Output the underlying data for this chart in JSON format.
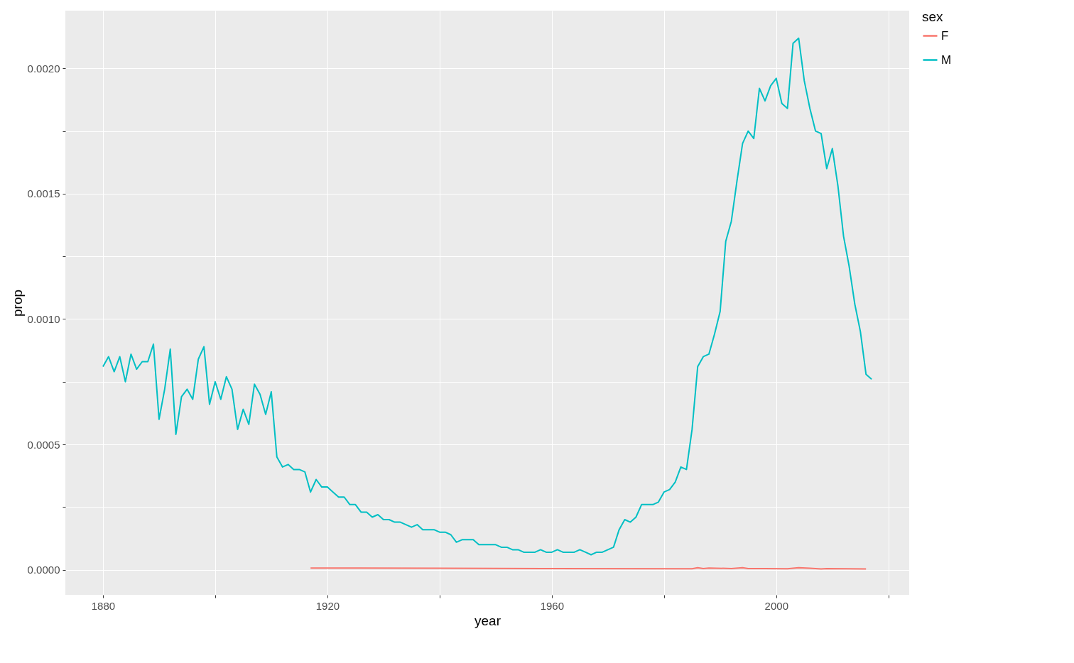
{
  "chart_data": {
    "type": "line",
    "xlabel": "year",
    "ylabel": "prop",
    "legend_title": "sex",
    "legend": "right",
    "grid": true,
    "xlim": [
      1873.3,
      2023.7
    ],
    "ylim": [
      -0.0001,
      0.00223
    ],
    "xticks": [
      1880,
      {
        "value": 1900,
        "label": null
      },
      1920,
      {
        "value": 1940,
        "label": null
      },
      1960,
      {
        "value": 1980,
        "label": null
      },
      2000,
      {
        "value": 2020,
        "label": null
      }
    ],
    "yticks": [
      {
        "value": 0,
        "label": "0.0000"
      },
      {
        "value": 0.00025,
        "label": null
      },
      {
        "value": 0.0005,
        "label": "0.0005"
      },
      {
        "value": 0.00075,
        "label": null
      },
      {
        "value": 0.001,
        "label": "0.0010"
      },
      {
        "value": 0.00125,
        "label": null
      },
      {
        "value": 0.0015,
        "label": "0.0015"
      },
      {
        "value": 0.00175,
        "label": null
      },
      {
        "value": 0.002,
        "label": "0.0020"
      }
    ],
    "series": [
      {
        "name": "F",
        "color": "#f8766d",
        "x": [
          1917,
          1940,
          1960,
          1985,
          1986,
          1987,
          1988,
          1992,
          1994,
          1995,
          1998,
          2002,
          2004,
          2006,
          2008,
          2009,
          2016
        ],
        "values": [
          7e-06,
          6e-06,
          5e-06,
          4e-06,
          8e-06,
          5e-06,
          7e-06,
          5e-06,
          8e-06,
          5e-06,
          5e-06,
          4e-06,
          8e-06,
          6e-06,
          3e-06,
          5e-06,
          3e-06
        ]
      },
      {
        "name": "M",
        "color": "#00bfc4",
        "x": [
          1880,
          1881,
          1882,
          1883,
          1884,
          1885,
          1886,
          1887,
          1888,
          1889,
          1890,
          1891,
          1892,
          1893,
          1894,
          1895,
          1896,
          1897,
          1898,
          1899,
          1900,
          1901,
          1902,
          1903,
          1904,
          1905,
          1906,
          1907,
          1908,
          1909,
          1910,
          1911,
          1912,
          1913,
          1914,
          1915,
          1916,
          1917,
          1918,
          1919,
          1920,
          1921,
          1922,
          1923,
          1924,
          1925,
          1926,
          1927,
          1928,
          1929,
          1930,
          1931,
          1932,
          1933,
          1934,
          1935,
          1936,
          1937,
          1938,
          1939,
          1940,
          1941,
          1942,
          1943,
          1944,
          1945,
          1946,
          1947,
          1948,
          1949,
          1950,
          1951,
          1952,
          1953,
          1954,
          1955,
          1956,
          1957,
          1958,
          1959,
          1960,
          1961,
          1962,
          1963,
          1964,
          1965,
          1966,
          1967,
          1968,
          1969,
          1970,
          1971,
          1972,
          1973,
          1974,
          1975,
          1976,
          1977,
          1978,
          1979,
          1980,
          1981,
          1982,
          1983,
          1984,
          1985,
          1986,
          1987,
          1988,
          1989,
          1990,
          1991,
          1992,
          1993,
          1994,
          1995,
          1996,
          1997,
          1998,
          1999,
          2000,
          2001,
          2002,
          2003,
          2004,
          2005,
          2006,
          2007,
          2008,
          2009,
          2010,
          2011,
          2012,
          2013,
          2014,
          2015,
          2016,
          2017
        ],
        "values": [
          0.00081,
          0.00085,
          0.00079,
          0.00085,
          0.00075,
          0.00086,
          0.0008,
          0.00083,
          0.00083,
          0.0009,
          0.0006,
          0.00072,
          0.00088,
          0.00054,
          0.00069,
          0.00072,
          0.00068,
          0.00084,
          0.00089,
          0.00066,
          0.00075,
          0.00068,
          0.00077,
          0.00072,
          0.00056,
          0.00064,
          0.00058,
          0.00074,
          0.0007,
          0.00062,
          0.00071,
          0.00045,
          0.00041,
          0.00042,
          0.0004,
          0.0004,
          0.00039,
          0.00031,
          0.00036,
          0.00033,
          0.00033,
          0.00031,
          0.00029,
          0.00029,
          0.00026,
          0.00026,
          0.00023,
          0.00023,
          0.00021,
          0.00022,
          0.0002,
          0.0002,
          0.00019,
          0.00019,
          0.00018,
          0.00017,
          0.00018,
          0.00016,
          0.00016,
          0.00016,
          0.00015,
          0.00015,
          0.00014,
          0.00011,
          0.00012,
          0.00012,
          0.00012,
          0.0001,
          0.0001,
          0.0001,
          0.0001,
          9e-05,
          9e-05,
          8e-05,
          8e-05,
          7e-05,
          7e-05,
          7e-05,
          8e-05,
          7e-05,
          7e-05,
          8e-05,
          7e-05,
          7e-05,
          7e-05,
          8e-05,
          7e-05,
          6e-05,
          7e-05,
          7e-05,
          8e-05,
          9e-05,
          0.00016,
          0.0002,
          0.00019,
          0.00021,
          0.00026,
          0.00026,
          0.00026,
          0.00027,
          0.00031,
          0.00032,
          0.00035,
          0.00041,
          0.0004,
          0.00056,
          0.00081,
          0.00085,
          0.00086,
          0.00094,
          0.00103,
          0.00131,
          0.00139,
          0.00155,
          0.0017,
          0.00175,
          0.00172,
          0.00192,
          0.00187,
          0.00193,
          0.00196,
          0.00186,
          0.00184,
          0.0021,
          0.00212,
          0.00195,
          0.00184,
          0.00175,
          0.00174,
          0.0016,
          0.00168,
          0.00153,
          0.00133,
          0.00121,
          0.00106,
          0.00095,
          0.00078,
          0.00076
        ]
      }
    ]
  }
}
